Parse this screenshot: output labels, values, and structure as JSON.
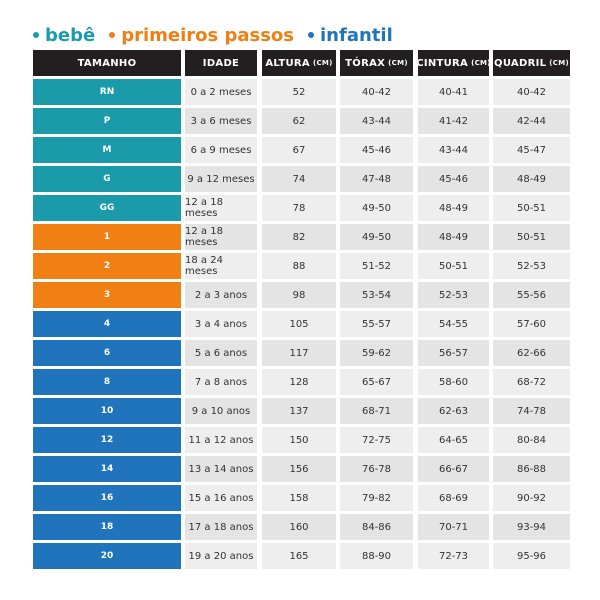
{
  "legend": [
    {
      "name": "bebê",
      "color": "#1b9aaa"
    },
    {
      "name": "primeiros passos",
      "color": "#f07f14"
    },
    {
      "name": "infantil",
      "color": "#1f74bb"
    }
  ],
  "header": [
    {
      "label": "TAMANHO"
    },
    {
      "label": "IDADE"
    },
    {
      "label": "ALTURA",
      "unit": "(CM)"
    },
    {
      "label": "TÓRAX",
      "unit": "(CM)"
    },
    {
      "label": "CINTURA",
      "unit": "(CM)"
    },
    {
      "label": "QUADRIL",
      "unit": "(CM)"
    }
  ],
  "groups": [
    {
      "rows": [
        [
          "RN",
          "0 a 2 meses",
          52,
          "40-42",
          "40-41",
          "40-42"
        ],
        [
          "P",
          "3 a 6 meses",
          62,
          "43-44",
          "41-42",
          "42-44"
        ],
        [
          "M",
          "6 a 9 meses",
          67,
          "45-46",
          "43-44",
          "45-47"
        ],
        [
          "G",
          "9 a 12 meses",
          74,
          "47-48",
          "45-46",
          "48-49"
        ],
        [
          "GG",
          "12 a 18 meses",
          78,
          "49-50",
          "48-49",
          "50-51"
        ]
      ]
    },
    {
      "rows": [
        [
          "1",
          "12 a 18 meses",
          82,
          "49-50",
          "48-49",
          "50-51"
        ],
        [
          "2",
          "18 a 24 meses",
          88,
          "51-52",
          "50-51",
          "52-53"
        ],
        [
          "3",
          "2 a 3 anos",
          98,
          "53-54",
          "52-53",
          "55-56"
        ]
      ]
    },
    {
      "rows": [
        [
          "4",
          "3 a 4 anos",
          105,
          "55-57",
          "54-55",
          "57-60"
        ],
        [
          "6",
          "5 a 6 anos",
          117,
          "59-62",
          "56-57",
          "62-66"
        ],
        [
          "8",
          "7 a 8 anos",
          128,
          "65-67",
          "58-60",
          "68-72"
        ],
        [
          "10",
          "9 a 10 anos",
          137,
          "68-71",
          "62-63",
          "74-78"
        ],
        [
          "12",
          "11 a 12 anos",
          150,
          "72-75",
          "64-65",
          "80-84"
        ],
        [
          "14",
          "13 a 14 anos",
          156,
          "76-78",
          "66-67",
          "86-88"
        ],
        [
          "16",
          "15 a 16 anos",
          158,
          "79-82",
          "68-69",
          "90-92"
        ],
        [
          "18",
          "17 a 18 anos",
          160,
          "84-86",
          "70-71",
          "93-94"
        ],
        [
          "20",
          "19 a 20 anos",
          165,
          "88-90",
          "72-73",
          "95-96"
        ]
      ]
    }
  ]
}
